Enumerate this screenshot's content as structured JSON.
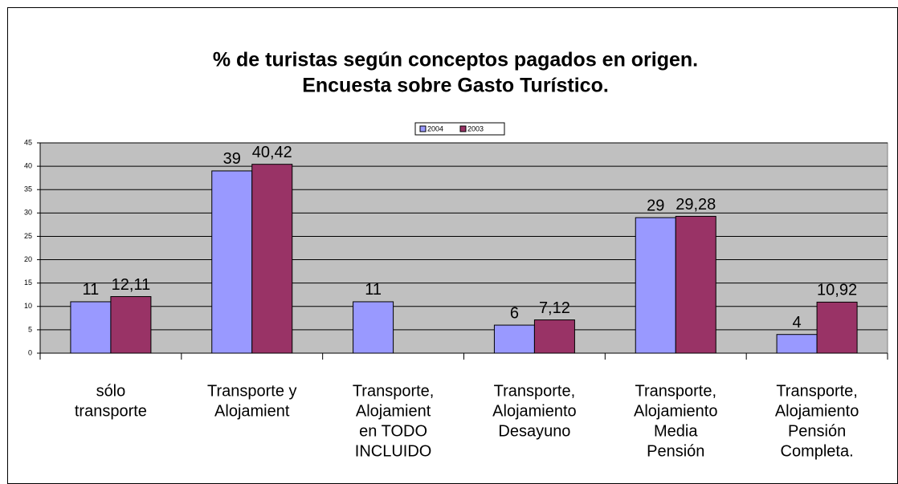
{
  "chart_data": {
    "type": "bar",
    "title": [
      "% de turistas según conceptos pagados en origen.",
      "Encuesta sobre Gasto Turístico."
    ],
    "categories": [
      [
        "sólo",
        "transporte"
      ],
      [
        "Transporte y",
        "Alojamient"
      ],
      [
        "Transporte,",
        "Alojamient",
        "en TODO",
        "INCLUIDO"
      ],
      [
        "Transporte,",
        "Alojamiento",
        "Desayuno"
      ],
      [
        "Transporte,",
        "Alojamiento",
        "Media",
        "Pensión"
      ],
      [
        "Transporte,",
        "Alojamiento",
        "Pensión",
        "Completa."
      ]
    ],
    "series": [
      {
        "name": "2004",
        "color": "#9999ff",
        "values": [
          11,
          39,
          11,
          6,
          29,
          4
        ]
      },
      {
        "name": "2003",
        "color": "#993366",
        "values": [
          12.11,
          40.42,
          null,
          7.12,
          29.28,
          10.92
        ],
        "value_labels": [
          "12,11",
          "40,42",
          null,
          "7,12",
          "29,28",
          "10,92"
        ]
      }
    ],
    "ylim": [
      0,
      45
    ],
    "yticks": [
      0,
      5,
      10,
      15,
      20,
      25,
      30,
      35,
      40,
      45
    ],
    "grid": true,
    "legend": "top"
  }
}
